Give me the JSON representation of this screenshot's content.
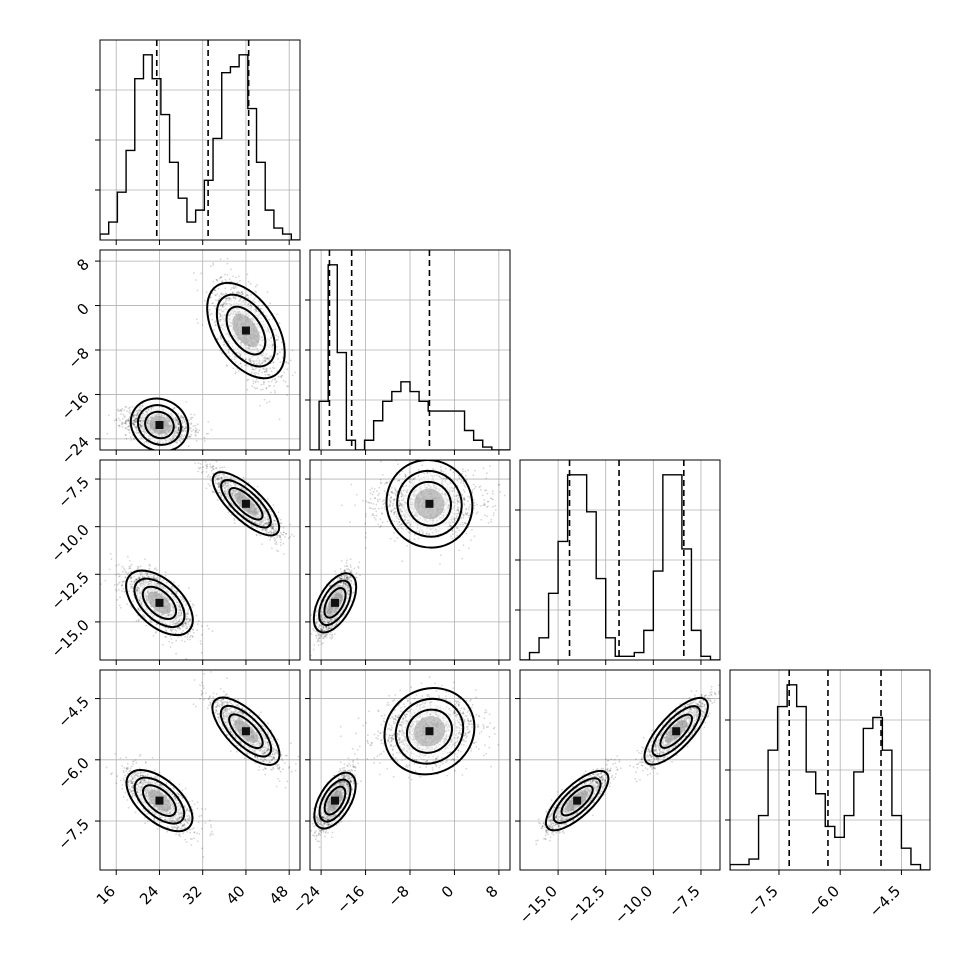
{
  "chart_data": {
    "type": "scatter",
    "subtype": "corner-plot",
    "title": "",
    "grid": true,
    "parameters": [
      {
        "range": [
          13,
          50
        ],
        "ticks": [
          16,
          24,
          32,
          40,
          48
        ],
        "tick_labels": [
          "16",
          "24",
          "32",
          "40",
          "48"
        ],
        "quantiles": [
          23.5,
          33,
          40.5
        ],
        "hist": [
          1,
          3,
          8,
          15,
          27,
          31,
          27,
          21,
          13,
          7,
          3,
          5,
          10,
          17,
          28,
          29,
          31,
          22,
          13,
          5,
          2,
          1,
          0
        ],
        "modes": [
          [
            24,
            3.0
          ],
          [
            40,
            3.0
          ]
        ]
      },
      {
        "range": [
          -26,
          10
        ],
        "ticks": [
          -24,
          -16,
          -8,
          0,
          8
        ],
        "tick_labels": [
          "−24",
          "−16",
          "−8",
          "0",
          "8"
        ],
        "quantiles": [
          -22.5,
          -18.5,
          -4.5
        ],
        "hist": [
          0,
          5,
          19,
          10,
          1,
          0,
          1,
          3,
          5,
          6,
          7,
          6,
          5,
          4,
          4,
          4,
          4,
          2,
          1,
          0.3,
          0,
          0
        ],
        "modes": [
          [
            -21.5,
            1.5
          ],
          [
            -4.5,
            4.5
          ]
        ]
      },
      {
        "range": [
          -17,
          -6.5
        ],
        "ticks": [
          -15.0,
          -12.5,
          -10.0,
          -7.5
        ],
        "tick_labels": [
          "−15.0",
          "−12.5",
          "−10.0",
          "−7.5"
        ],
        "quantiles": [
          -14.4,
          -11.8,
          -8.4
        ],
        "hist": [
          0,
          1,
          3,
          9,
          16,
          25,
          25,
          20,
          11,
          3,
          0.5,
          0.5,
          1,
          4,
          12,
          25,
          25,
          15,
          4,
          0.5,
          0
        ],
        "modes": [
          [
            -14.0,
            0.8
          ],
          [
            -8.8,
            0.8
          ]
        ]
      },
      {
        "range": [
          -8.7,
          -3.8
        ],
        "ticks": [
          -7.5,
          -6.0,
          -4.5
        ],
        "tick_labels": [
          "−7.5",
          "−6.0",
          "−4.5"
        ],
        "quantiles": [
          -7.25,
          -6.3,
          -5.0
        ],
        "hist": [
          0.5,
          0.5,
          1,
          5,
          11,
          15,
          17,
          15,
          9,
          7,
          4,
          3,
          5,
          9,
          13,
          14,
          11,
          5,
          2,
          0.5,
          0
        ],
        "modes": [
          [
            -7.0,
            0.35
          ],
          [
            -5.3,
            0.4
          ]
        ]
      }
    ],
    "correlations": [
      {
        "i": 1,
        "j": 0,
        "rho": [
          -0.3,
          -0.6
        ]
      },
      {
        "i": 2,
        "j": 0,
        "rho": [
          -0.65,
          -0.85
        ]
      },
      {
        "i": 3,
        "j": 0,
        "rho": [
          -0.7,
          -0.8
        ]
      },
      {
        "i": 2,
        "j": 1,
        "rho": [
          0.75,
          0.05
        ]
      },
      {
        "i": 3,
        "j": 1,
        "rho": [
          0.75,
          0.2
        ]
      },
      {
        "i": 3,
        "j": 2,
        "rho": [
          0.85,
          0.85
        ]
      }
    ]
  }
}
